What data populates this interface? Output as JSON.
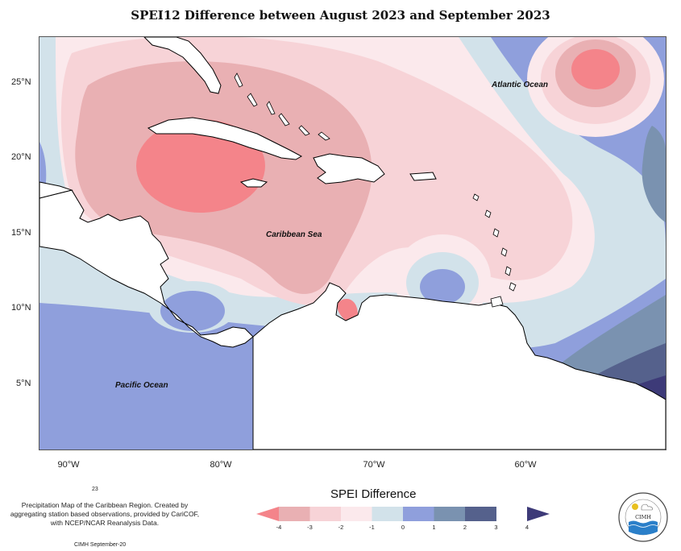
{
  "title": "SPEI12 Difference between August 2023 and September 2023",
  "map": {
    "labels": {
      "atlantic": "Atlantic Ocean",
      "caribbean": "Caribbean Sea",
      "pacific": "Pacific Ocean"
    },
    "lat_ticks": [
      "25°N",
      "20°N",
      "15°N",
      "10°N",
      "5°N"
    ],
    "lon_ticks": [
      "90°W",
      "80°W",
      "70°W",
      "60°W"
    ],
    "extent": {
      "lon": [
        -92,
        -51
      ],
      "lat": [
        1,
        28
      ]
    }
  },
  "legend": {
    "title": "SPEI Difference",
    "ticks": [
      "-4",
      "-3",
      "-2",
      "-1",
      "0",
      "1",
      "2",
      "3",
      "4"
    ],
    "colors": [
      "#f4848a",
      "#e9b0b3",
      "#f7d3d7",
      "#fbe9ec",
      "#d2e2ea",
      "#8f9fdc",
      "#7a92b0",
      "#55618c",
      "#3d3a78"
    ]
  },
  "notes": {
    "page_number": "23",
    "description": "Precipitation Map of the Caribbean Region. Created by aggregating station based observations, provided by CariCOF, with NCEP/NCAR Reanalysis Data.",
    "credit": "CIMH September-20"
  },
  "logo": {
    "text": "CIMH"
  },
  "colors": {
    "land": "#ffffff",
    "coast": "#000000"
  }
}
